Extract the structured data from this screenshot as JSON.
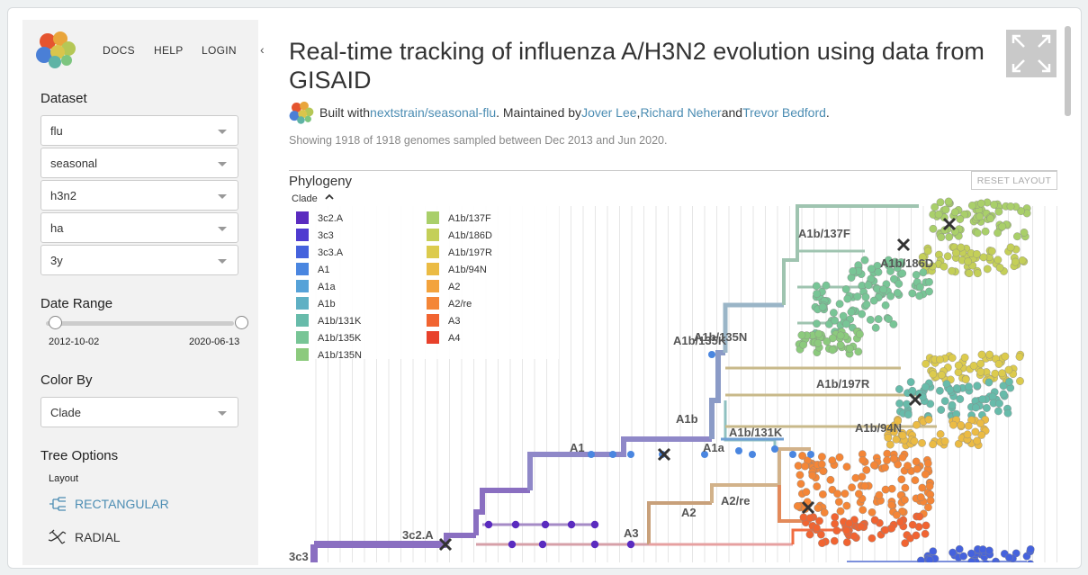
{
  "nav": {
    "docs": "DOCS",
    "help": "HELP",
    "login": "LOGIN"
  },
  "sidebar": {
    "dataset_label": "Dataset",
    "dataset": [
      "flu",
      "seasonal",
      "h3n2",
      "ha",
      "3y"
    ],
    "date_range_label": "Date Range",
    "date_start": "2012-10-02",
    "date_end": "2020-06-13",
    "color_by_label": "Color By",
    "color_by": "Clade",
    "tree_options_label": "Tree Options",
    "layout_label": "Layout",
    "layout_rectangular": "RECTANGULAR",
    "layout_radial": "RADIAL"
  },
  "main": {
    "title": "Real-time tracking of influenza A/H3N2 evolution using data from GISAID",
    "byline": {
      "built_with": "Built with ",
      "repo": "nextstrain/seasonal-flu",
      "maintained": ". Maintained by ",
      "m1": "Jover Lee",
      "sep1": ", ",
      "m2": "Richard Neher",
      "and": " and ",
      "m3": "Trevor Bedford",
      "end": "."
    },
    "showing": "Showing 1918 of 1918 genomes sampled between Dec 2013 and Jun 2020.",
    "panel_title": "Phylogeny",
    "reset": "RESET LAYOUT",
    "legend_title": "Clade",
    "legend": [
      {
        "name": "3c2.A",
        "color": "#5a2bbf"
      },
      {
        "name": "3c3",
        "color": "#4f3bd0"
      },
      {
        "name": "3c3.A",
        "color": "#4562dd"
      },
      {
        "name": "A1",
        "color": "#4a86e0"
      },
      {
        "name": "A1a",
        "color": "#56a2d8"
      },
      {
        "name": "A1b",
        "color": "#5fb0c4"
      },
      {
        "name": "A1b/131K",
        "color": "#67bbaa"
      },
      {
        "name": "A1b/135K",
        "color": "#78c596"
      },
      {
        "name": "A1b/135N",
        "color": "#8cca7d"
      },
      {
        "name": "A1b/137F",
        "color": "#a9cf6a"
      },
      {
        "name": "A1b/186D",
        "color": "#c4cf58"
      },
      {
        "name": "A1b/197R",
        "color": "#dccb4d"
      },
      {
        "name": "A1b/94N",
        "color": "#ebbb44"
      },
      {
        "name": "A2",
        "color": "#f3a33d"
      },
      {
        "name": "A2/re",
        "color": "#f48637"
      },
      {
        "name": "A3",
        "color": "#f16431"
      },
      {
        "name": "A4",
        "color": "#e8412b"
      }
    ],
    "clade_labels": [
      "A1b/137F",
      "A1b/186D",
      "A1b/135K",
      "A1b/135N",
      "A1b/197R",
      "A1b/94N",
      "A1b/131K",
      "A1b",
      "A1a",
      "A1",
      "A2",
      "A2/re",
      "3c2.A",
      "A3",
      "3c3"
    ]
  }
}
